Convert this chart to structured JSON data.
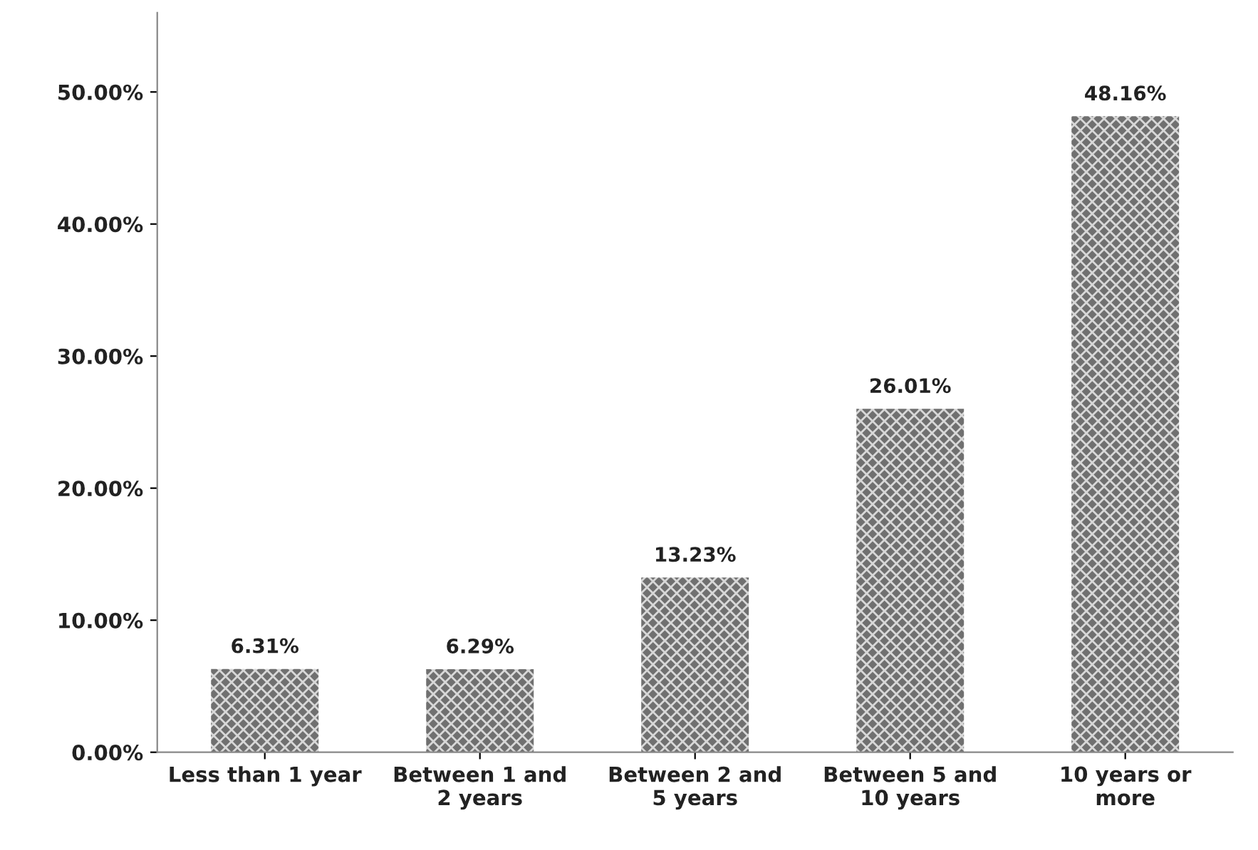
{
  "chart_data": {
    "type": "bar",
    "categories": [
      "Less than 1 year",
      "Between 1 and\n2 years",
      "Between 2 and\n5 years",
      "Between 5 and\n10 years",
      "10 years or\nmore"
    ],
    "values": [
      6.31,
      6.29,
      13.23,
      26.01,
      48.16
    ],
    "value_labels": [
      "6.31%",
      "6.29%",
      "13.23%",
      "26.01%",
      "48.16%"
    ],
    "color": "#707070",
    "ylim": [
      0,
      56
    ],
    "yticks": [
      {
        "value": 0,
        "label": "0.00%"
      },
      {
        "value": 10,
        "label": "10.00%"
      },
      {
        "value": 20,
        "label": "20.00%"
      },
      {
        "value": 30,
        "label": "30.00%"
      },
      {
        "value": 40,
        "label": "40.00%"
      },
      {
        "value": 50,
        "label": "50.00%"
      }
    ],
    "grid": false,
    "legend": false
  }
}
